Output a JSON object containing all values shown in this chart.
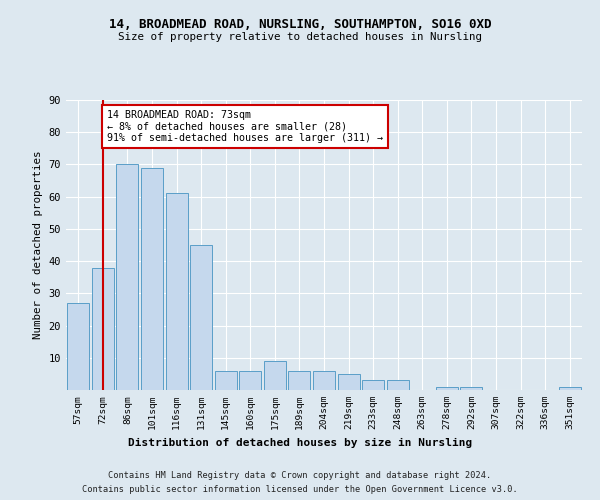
{
  "title1": "14, BROADMEAD ROAD, NURSLING, SOUTHAMPTON, SO16 0XD",
  "title2": "Size of property relative to detached houses in Nursling",
  "xlabel": "Distribution of detached houses by size in Nursling",
  "ylabel": "Number of detached properties",
  "categories": [
    "57sqm",
    "72sqm",
    "86sqm",
    "101sqm",
    "116sqm",
    "131sqm",
    "145sqm",
    "160sqm",
    "175sqm",
    "189sqm",
    "204sqm",
    "219sqm",
    "233sqm",
    "248sqm",
    "263sqm",
    "278sqm",
    "292sqm",
    "307sqm",
    "322sqm",
    "336sqm",
    "351sqm"
  ],
  "values": [
    27,
    38,
    70,
    69,
    61,
    45,
    6,
    6,
    9,
    6,
    6,
    5,
    3,
    3,
    0,
    1,
    1,
    0,
    0,
    0,
    1
  ],
  "bar_color": "#c5d8ed",
  "bar_edge_color": "#5a9ec8",
  "vline_x": 1.0,
  "vline_color": "#cc0000",
  "annotation_text": "14 BROADMEAD ROAD: 73sqm\n← 8% of detached houses are smaller (28)\n91% of semi-detached houses are larger (311) →",
  "annotation_box_color": "#ffffff",
  "annotation_box_edge": "#cc0000",
  "bg_color": "#dde8f0",
  "grid_color": "#ffffff",
  "footer1": "Contains HM Land Registry data © Crown copyright and database right 2024.",
  "footer2": "Contains public sector information licensed under the Open Government Licence v3.0.",
  "ylim": [
    0,
    90
  ],
  "yticks": [
    0,
    10,
    20,
    30,
    40,
    50,
    60,
    70,
    80,
    90
  ]
}
